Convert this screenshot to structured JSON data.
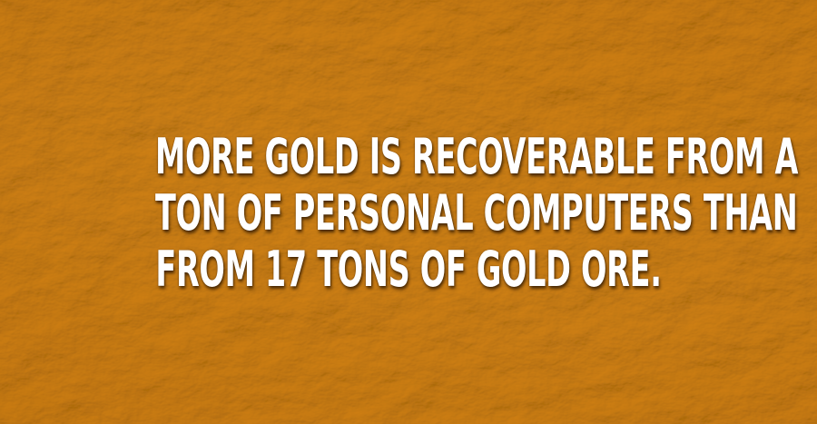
{
  "caption": {
    "line1": "MORE GOLD IS RECOVERABLE FROM A",
    "line2": "TON OF PERSONAL COMPUTERS THAN",
    "line3": "FROM  17 TONS OF GOLD ORE."
  },
  "colors": {
    "background": "#c98a1c",
    "text": "#ffffff"
  }
}
